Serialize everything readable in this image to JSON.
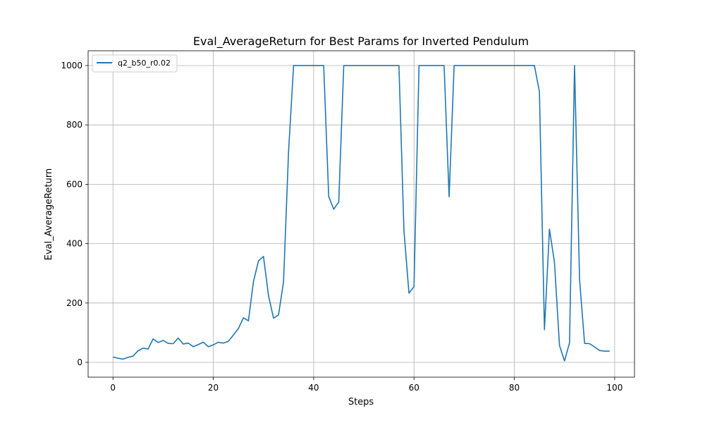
{
  "chart_data": {
    "type": "line",
    "title": "Eval_AverageReturn for Best Params for Inverted Pendulum",
    "xlabel": "Steps",
    "ylabel": "Eval_AverageReturn",
    "xlim": [
      -4.95,
      103.95
    ],
    "ylim": [
      -49.8,
      1049.8
    ],
    "xticks": [
      0,
      20,
      40,
      60,
      80,
      100
    ],
    "yticks": [
      0,
      200,
      400,
      600,
      800,
      1000
    ],
    "grid": true,
    "legend_position": "top-left",
    "series": [
      {
        "name": "q2_b50_r0.02",
        "color": "#1f77b4",
        "x": [
          0,
          1,
          2,
          3,
          4,
          5,
          6,
          7,
          8,
          9,
          10,
          11,
          12,
          13,
          14,
          15,
          16,
          17,
          18,
          19,
          20,
          21,
          22,
          23,
          24,
          25,
          26,
          27,
          28,
          29,
          30,
          31,
          32,
          33,
          34,
          35,
          36,
          37,
          38,
          39,
          40,
          41,
          42,
          43,
          44,
          45,
          46,
          47,
          48,
          49,
          50,
          51,
          52,
          53,
          54,
          55,
          56,
          57,
          58,
          59,
          60,
          61,
          62,
          63,
          64,
          65,
          66,
          67,
          68,
          69,
          70,
          71,
          72,
          73,
          74,
          75,
          76,
          77,
          78,
          79,
          80,
          81,
          82,
          83,
          84,
          85,
          86,
          87,
          88,
          89,
          90,
          91,
          92,
          93,
          94,
          95,
          96,
          97,
          98,
          99
        ],
        "y": [
          18,
          14,
          11,
          17,
          21,
          39,
          48,
          45,
          79,
          67,
          74,
          64,
          63,
          82,
          62,
          65,
          53,
          60,
          68,
          53,
          59,
          68,
          65,
          71,
          92,
          114,
          150,
          140,
          272,
          342,
          357,
          225,
          149,
          160,
          272,
          710,
          1000,
          1000,
          1000,
          1000,
          1000,
          1000,
          1000,
          559,
          516,
          540,
          1000,
          1000,
          1000,
          1000,
          1000,
          1000,
          1000,
          1000,
          1000,
          1000,
          1000,
          1000,
          443,
          233,
          255,
          1000,
          1000,
          1000,
          1000,
          1000,
          1000,
          558,
          1000,
          1000,
          1000,
          1000,
          1000,
          1000,
          1000,
          1000,
          1000,
          1000,
          1000,
          1000,
          1000,
          1000,
          1000,
          1000,
          1000,
          912,
          110,
          449,
          337,
          57,
          5,
          66,
          1000,
          280,
          64,
          63,
          52,
          40,
          38,
          38
        ]
      }
    ]
  }
}
